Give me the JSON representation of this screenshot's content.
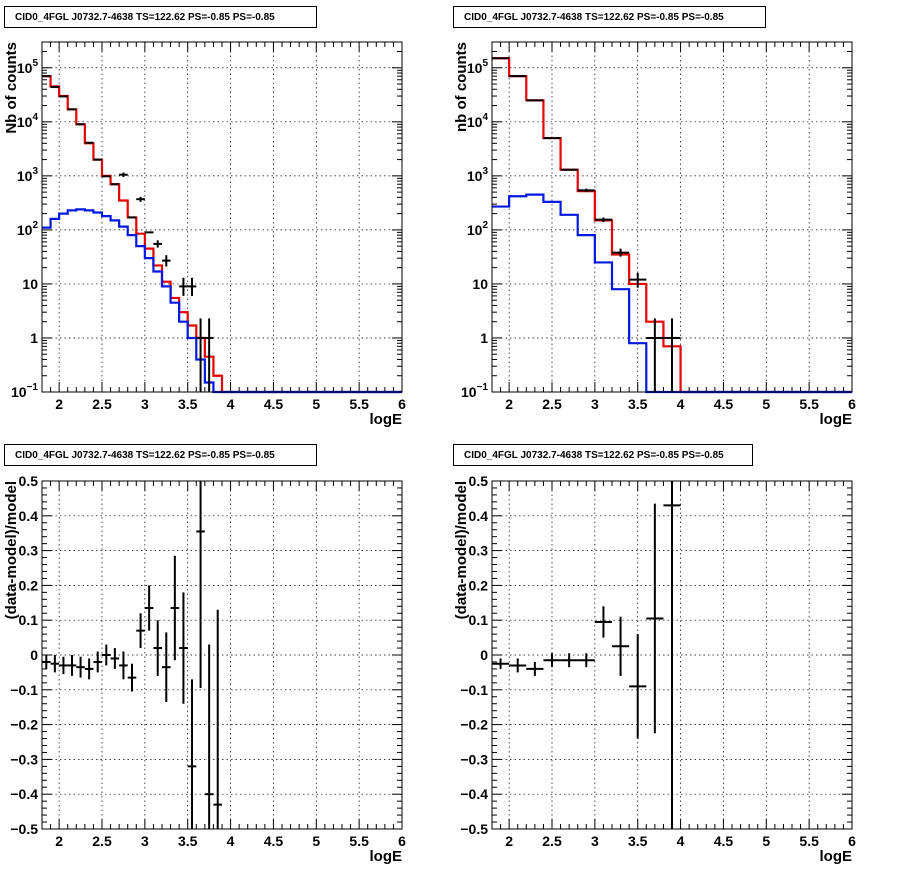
{
  "chart_data": [
    {
      "type": "step-histogram",
      "panel": "top-left",
      "title": "CID0_4FGL J0732.7-4638 TS=122.62 PS=-0.85 PS=-0.85",
      "xlabel": "logE",
      "ylabel": "Nb of counts",
      "xlim": [
        1.8,
        6
      ],
      "ylim": [
        0.1,
        300000
      ],
      "yscale": "log",
      "grid": true,
      "xticks": [
        "2",
        "2.5",
        "3",
        "3.5",
        "4",
        "4.5",
        "5",
        "5.5",
        "6"
      ],
      "yticks": [
        {
          "v": 0.1,
          "base": "10",
          "exp": "−1"
        },
        {
          "v": 1,
          "t": "1"
        },
        {
          "v": 10,
          "t": "10"
        },
        {
          "v": 100,
          "base": "10",
          "exp": "2"
        },
        {
          "v": 1000,
          "base": "10",
          "exp": "3"
        },
        {
          "v": 10000,
          "base": "10",
          "exp": "4"
        },
        {
          "v": 100000,
          "base": "10",
          "exp": "5"
        }
      ],
      "bin_edges": [
        1.8,
        1.9,
        2.0,
        2.1,
        2.2,
        2.3,
        2.4,
        2.5,
        2.6,
        2.7,
        2.8,
        2.9,
        3.0,
        3.1,
        3.2,
        3.3,
        3.4,
        3.5,
        3.6,
        3.7,
        3.8,
        3.9,
        4.0,
        4.1,
        4.2,
        4.3,
        4.4,
        4.5,
        4.6,
        4.7,
        4.8,
        4.9,
        5.0,
        5.1,
        5.2,
        5.3,
        5.4,
        5.5,
        5.6,
        5.7,
        5.8,
        5.9,
        6.0
      ],
      "series": [
        {
          "color": "#e60000",
          "values": [
            70000,
            45000,
            30000,
            17000,
            9000,
            4000,
            2000,
            1000,
            700,
            350,
            170,
            85,
            45,
            22,
            11,
            5.5,
            3,
            1.7,
            1,
            0.45,
            0.2,
            0.1,
            0.1,
            0.1,
            0.1,
            0.1,
            0.1,
            0.1,
            0.1,
            0.1,
            0.1,
            0.1,
            0.1,
            0.1,
            0.1,
            0.1,
            0.1,
            0.1,
            0.1,
            0.1,
            0.1,
            0.1
          ]
        },
        {
          "color": "#0018e0",
          "values": [
            110,
            160,
            200,
            230,
            240,
            230,
            210,
            180,
            150,
            115,
            80,
            50,
            30,
            17,
            9,
            4.5,
            2,
            1,
            0.4,
            0.15,
            0.1,
            0.1,
            0.1,
            0.1,
            0.1,
            0.1,
            0.1,
            0.1,
            0.1,
            0.1,
            0.1,
            0.1,
            0.1,
            0.1,
            0.1,
            0.1,
            0.1,
            0.1,
            0.1,
            0.1,
            0.1,
            0.1
          ]
        }
      ],
      "data_points": [
        {
          "x": 1.85,
          "y": 70000
        },
        {
          "x": 1.95,
          "y": 44000
        },
        {
          "x": 2.05,
          "y": 29500
        },
        {
          "x": 2.15,
          "y": 17000
        },
        {
          "x": 2.25,
          "y": 9000
        },
        {
          "x": 2.35,
          "y": 4100
        },
        {
          "x": 2.45,
          "y": 2000
        },
        {
          "x": 2.55,
          "y": 980
        },
        {
          "x": 2.65,
          "y": 700
        },
        {
          "x": 2.75,
          "y": 1050,
          "ylo": 950,
          "yhi": 1150
        },
        {
          "x": 2.85,
          "y": 170
        },
        {
          "x": 2.95,
          "y": 370,
          "ylo": 330,
          "yhi": 410
        },
        {
          "x": 3.05,
          "y": 90
        },
        {
          "x": 3.15,
          "y": 55,
          "ylo": 47,
          "yhi": 64
        },
        {
          "x": 3.25,
          "y": 27,
          "ylo": 21,
          "yhi": 34
        },
        {
          "x": 3.45,
          "y": 9,
          "ylo": 6,
          "yhi": 13
        },
        {
          "x": 3.55,
          "y": 9,
          "ylo": 6,
          "yhi": 13
        },
        {
          "x": 3.65,
          "y": 1,
          "ylo": 0.1,
          "yhi": 2.3
        },
        {
          "x": 3.75,
          "y": 1,
          "ylo": 0.1,
          "yhi": 2.3
        }
      ]
    },
    {
      "type": "step-histogram",
      "panel": "top-right",
      "title": "CID0_4FGL J0732.7-4638 TS=122.62 PS=-0.85 PS=-0.85",
      "xlabel": "logE",
      "ylabel": "nb of counts",
      "xlim": [
        1.8,
        6
      ],
      "ylim": [
        0.1,
        300000
      ],
      "yscale": "log",
      "grid": true,
      "xticks": [
        "2",
        "2.5",
        "3",
        "3.5",
        "4",
        "4.5",
        "5",
        "5.5",
        "6"
      ],
      "yticks": [
        {
          "v": 0.1,
          "base": "10",
          "exp": "−1"
        },
        {
          "v": 1,
          "t": "1"
        },
        {
          "v": 10,
          "t": "10"
        },
        {
          "v": 100,
          "base": "10",
          "exp": "2"
        },
        {
          "v": 1000,
          "base": "10",
          "exp": "3"
        },
        {
          "v": 10000,
          "base": "10",
          "exp": "4"
        },
        {
          "v": 100000,
          "base": "10",
          "exp": "5"
        }
      ],
      "bin_edges": [
        1.8,
        2.0,
        2.2,
        2.4,
        2.6,
        2.8,
        3.0,
        3.2,
        3.4,
        3.6,
        3.8,
        4.0,
        4.2,
        4.4,
        4.6,
        4.8,
        5.0,
        5.2,
        5.4,
        5.6,
        5.8,
        6.0
      ],
      "series": [
        {
          "color": "#e60000",
          "values": [
            150000,
            70000,
            25000,
            5000,
            1300,
            520,
            150,
            35,
            10,
            2,
            0.7,
            0.1,
            0.1,
            0.1,
            0.1,
            0.1,
            0.1,
            0.1,
            0.1,
            0.1,
            0.1
          ]
        },
        {
          "color": "#0018e0",
          "values": [
            270,
            420,
            450,
            330,
            190,
            80,
            25,
            8,
            0.8,
            0.1,
            0.1,
            0.1,
            0.1,
            0.1,
            0.1,
            0.1,
            0.1,
            0.1,
            0.1,
            0.1,
            0.1
          ]
        }
      ],
      "data_points": [
        {
          "x": 1.9,
          "y": 150000
        },
        {
          "x": 2.1,
          "y": 70000
        },
        {
          "x": 2.3,
          "y": 25000
        },
        {
          "x": 2.5,
          "y": 5000
        },
        {
          "x": 2.7,
          "y": 1300
        },
        {
          "x": 2.9,
          "y": 540,
          "ylo": 500,
          "yhi": 580
        },
        {
          "x": 3.1,
          "y": 155,
          "ylo": 140,
          "yhi": 170
        },
        {
          "x": 3.3,
          "y": 38,
          "ylo": 32,
          "yhi": 45
        },
        {
          "x": 3.5,
          "y": 12,
          "ylo": 8.5,
          "yhi": 16
        },
        {
          "x": 3.7,
          "y": 1,
          "ylo": 0.1,
          "yhi": 2.3
        },
        {
          "x": 3.9,
          "y": 1,
          "ylo": 0.1,
          "yhi": 2.3
        }
      ]
    },
    {
      "type": "scatter-errorbars",
      "panel": "bottom-left",
      "title": "CID0_4FGL J0732.7-4638 TS=122.62 PS=-0.85 PS=-0.85",
      "xlabel": "logE",
      "ylabel": "(data-model)/model",
      "xlim": [
        1.8,
        6
      ],
      "ylim": [
        -0.5,
        0.5
      ],
      "yscale": "linear",
      "grid": true,
      "xticks": [
        "2",
        "2.5",
        "3",
        "3.5",
        "4",
        "4.5",
        "5",
        "5.5",
        "6"
      ],
      "yticks": [
        {
          "v": -0.5,
          "t": "−0.5"
        },
        {
          "v": -0.4,
          "t": "−0.4"
        },
        {
          "v": -0.3,
          "t": "−0.3"
        },
        {
          "v": -0.2,
          "t": "−0.2"
        },
        {
          "v": -0.1,
          "t": "−0.1"
        },
        {
          "v": 0,
          "t": "0"
        },
        {
          "v": 0.1,
          "t": "0.1"
        },
        {
          "v": 0.2,
          "t": "0.2"
        },
        {
          "v": 0.3,
          "t": "0.3"
        },
        {
          "v": 0.4,
          "t": "0.4"
        },
        {
          "v": 0.5,
          "t": "0.5"
        }
      ],
      "binwidth": 0.1,
      "points": [
        {
          "x": 1.85,
          "y": -0.02,
          "e": 0.02
        },
        {
          "x": 1.95,
          "y": -0.025,
          "e": 0.025
        },
        {
          "x": 2.05,
          "y": -0.03,
          "e": 0.025
        },
        {
          "x": 2.15,
          "y": -0.03,
          "e": 0.03
        },
        {
          "x": 2.25,
          "y": -0.035,
          "e": 0.03
        },
        {
          "x": 2.35,
          "y": -0.04,
          "e": 0.03
        },
        {
          "x": 2.45,
          "y": -0.02,
          "e": 0.03
        },
        {
          "x": 2.55,
          "y": 0.0,
          "e": 0.03
        },
        {
          "x": 2.65,
          "y": -0.01,
          "e": 0.03
        },
        {
          "x": 2.75,
          "y": -0.03,
          "e": 0.04
        },
        {
          "x": 2.85,
          "y": -0.065,
          "e": 0.04
        },
        {
          "x": 2.95,
          "y": 0.07,
          "e": 0.05
        },
        {
          "x": 3.05,
          "y": 0.135,
          "e": 0.065
        },
        {
          "x": 3.15,
          "y": 0.02,
          "e": 0.08
        },
        {
          "x": 3.25,
          "y": -0.035,
          "e": 0.1
        },
        {
          "x": 3.35,
          "y": 0.135,
          "e": 0.15
        },
        {
          "x": 3.45,
          "y": 0.02,
          "e": 0.16
        },
        {
          "x": 3.55,
          "y": -0.32,
          "e": 0.25
        },
        {
          "x": 3.65,
          "y": 0.355,
          "e": 0.45
        },
        {
          "x": 3.75,
          "y": -0.4,
          "e": 0.43
        },
        {
          "x": 3.85,
          "y": -0.43,
          "e": 0.56
        }
      ]
    },
    {
      "type": "scatter-errorbars",
      "panel": "bottom-right",
      "title": "CID0_4FGL J0732.7-4638 TS=122.62 PS=-0.85 PS=-0.85",
      "xlabel": "logE",
      "ylabel": "(data-model)/model",
      "xlim": [
        1.8,
        6
      ],
      "ylim": [
        -0.5,
        0.5
      ],
      "yscale": "linear",
      "grid": true,
      "xticks": [
        "2",
        "2.5",
        "3",
        "3.5",
        "4",
        "4.5",
        "5",
        "5.5",
        "6"
      ],
      "yticks": [
        {
          "v": -0.5,
          "t": "−0.5"
        },
        {
          "v": -0.4,
          "t": "−0.4"
        },
        {
          "v": -0.3,
          "t": "−0.3"
        },
        {
          "v": -0.2,
          "t": "−0.2"
        },
        {
          "v": -0.1,
          "t": "−0.1"
        },
        {
          "v": 0,
          "t": "0"
        },
        {
          "v": 0.1,
          "t": "0.1"
        },
        {
          "v": 0.2,
          "t": "0.2"
        },
        {
          "v": 0.3,
          "t": "0.3"
        },
        {
          "v": 0.4,
          "t": "0.4"
        },
        {
          "v": 0.5,
          "t": "0.5"
        }
      ],
      "binwidth": 0.2,
      "points": [
        {
          "x": 1.9,
          "y": -0.025,
          "e": 0.015
        },
        {
          "x": 2.1,
          "y": -0.03,
          "e": 0.02
        },
        {
          "x": 2.3,
          "y": -0.04,
          "e": 0.02
        },
        {
          "x": 2.5,
          "y": -0.015,
          "e": 0.02
        },
        {
          "x": 2.7,
          "y": -0.015,
          "e": 0.02
        },
        {
          "x": 2.9,
          "y": -0.015,
          "e": 0.02
        },
        {
          "x": 3.1,
          "y": 0.095,
          "e": 0.045
        },
        {
          "x": 3.3,
          "y": 0.025,
          "e": 0.085
        },
        {
          "x": 3.5,
          "y": -0.09,
          "e": 0.15
        },
        {
          "x": 3.7,
          "y": 0.105,
          "e": 0.33
        },
        {
          "x": 3.9,
          "y": 0.43,
          "e": 1.0
        }
      ]
    }
  ]
}
